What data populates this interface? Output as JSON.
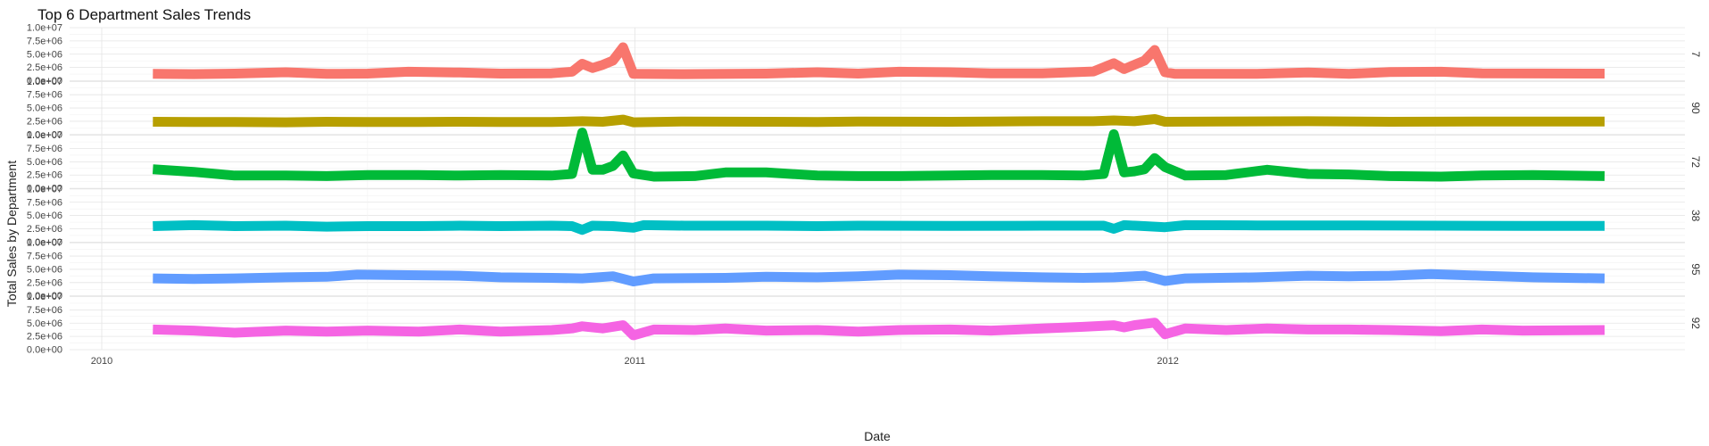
{
  "chart_data": {
    "type": "line",
    "title": "Top 6 Department Sales Trends",
    "xlabel": "Date",
    "ylabel": "Total Sales by Department",
    "facet": "rows",
    "grid": true,
    "legend": "none",
    "xlim": [
      "2009-12-10",
      "2012-12-20"
    ],
    "ylim": [
      0,
      10000000
    ],
    "x_ticks": [
      "2010",
      "2011",
      "2012"
    ],
    "y_ticks": [
      {
        "value": 0,
        "label": "0.0e+00"
      },
      {
        "value": 2500000,
        "label": "2.5e+06"
      },
      {
        "value": 5000000,
        "label": "5.0e+06"
      },
      {
        "value": 7500000,
        "label": "7.5e+06"
      },
      {
        "value": 10000000,
        "label": "1.0e+07"
      }
    ],
    "series": [
      {
        "name": "7",
        "color": "#F8766D",
        "points": [
          [
            "2010-02-05",
            1300000
          ],
          [
            "2010-03-05",
            1250000
          ],
          [
            "2010-04-02",
            1350000
          ],
          [
            "2010-05-07",
            1600000
          ],
          [
            "2010-06-04",
            1300000
          ],
          [
            "2010-07-02",
            1350000
          ],
          [
            "2010-07-30",
            1700000
          ],
          [
            "2010-09-03",
            1550000
          ],
          [
            "2010-10-01",
            1350000
          ],
          [
            "2010-11-05",
            1400000
          ],
          [
            "2010-11-19",
            1700000
          ],
          [
            "2010-11-26",
            3200000
          ],
          [
            "2010-12-03",
            2400000
          ],
          [
            "2010-12-10",
            3000000
          ],
          [
            "2010-12-17",
            3800000
          ],
          [
            "2010-12-24",
            6300000
          ],
          [
            "2010-12-31",
            1300000
          ],
          [
            "2011-02-04",
            1250000
          ],
          [
            "2011-04-01",
            1350000
          ],
          [
            "2011-05-06",
            1600000
          ],
          [
            "2011-06-03",
            1350000
          ],
          [
            "2011-07-01",
            1700000
          ],
          [
            "2011-08-05",
            1600000
          ],
          [
            "2011-09-02",
            1400000
          ],
          [
            "2011-10-07",
            1400000
          ],
          [
            "2011-11-11",
            1750000
          ],
          [
            "2011-11-25",
            3300000
          ],
          [
            "2011-12-02",
            2200000
          ],
          [
            "2011-12-09",
            3000000
          ],
          [
            "2011-12-16",
            3800000
          ],
          [
            "2011-12-23",
            5800000
          ],
          [
            "2011-12-30",
            1600000
          ],
          [
            "2012-01-06",
            1300000
          ],
          [
            "2012-03-02",
            1300000
          ],
          [
            "2012-04-06",
            1550000
          ],
          [
            "2012-05-04",
            1300000
          ],
          [
            "2012-06-01",
            1650000
          ],
          [
            "2012-07-06",
            1700000
          ],
          [
            "2012-08-03",
            1400000
          ],
          [
            "2012-10-26",
            1350000
          ]
        ]
      },
      {
        "name": "90",
        "color": "#B79F00",
        "points": [
          [
            "2010-02-05",
            2400000
          ],
          [
            "2010-03-05",
            2350000
          ],
          [
            "2010-04-02",
            2350000
          ],
          [
            "2010-05-07",
            2300000
          ],
          [
            "2010-06-04",
            2400000
          ],
          [
            "2010-07-02",
            2350000
          ],
          [
            "2010-08-06",
            2350000
          ],
          [
            "2010-09-03",
            2400000
          ],
          [
            "2010-10-01",
            2350000
          ],
          [
            "2010-11-05",
            2350000
          ],
          [
            "2010-11-26",
            2500000
          ],
          [
            "2010-12-10",
            2400000
          ],
          [
            "2010-12-24",
            2800000
          ],
          [
            "2010-12-31",
            2300000
          ],
          [
            "2011-02-04",
            2450000
          ],
          [
            "2011-04-01",
            2400000
          ],
          [
            "2011-05-06",
            2350000
          ],
          [
            "2011-06-03",
            2450000
          ],
          [
            "2011-08-05",
            2400000
          ],
          [
            "2011-09-02",
            2450000
          ],
          [
            "2011-10-07",
            2500000
          ],
          [
            "2011-11-11",
            2500000
          ],
          [
            "2011-11-25",
            2650000
          ],
          [
            "2011-12-09",
            2500000
          ],
          [
            "2011-12-23",
            2900000
          ],
          [
            "2011-12-30",
            2400000
          ],
          [
            "2012-02-03",
            2450000
          ],
          [
            "2012-04-06",
            2500000
          ],
          [
            "2012-06-01",
            2400000
          ],
          [
            "2012-08-03",
            2450000
          ],
          [
            "2012-10-26",
            2450000
          ]
        ]
      },
      {
        "name": "72",
        "color": "#00BA38",
        "points": [
          [
            "2010-02-05",
            3600000
          ],
          [
            "2010-03-05",
            3100000
          ],
          [
            "2010-04-02",
            2400000
          ],
          [
            "2010-05-07",
            2400000
          ],
          [
            "2010-06-04",
            2300000
          ],
          [
            "2010-07-02",
            2500000
          ],
          [
            "2010-08-06",
            2500000
          ],
          [
            "2010-09-03",
            2400000
          ],
          [
            "2010-10-01",
            2500000
          ],
          [
            "2010-11-05",
            2400000
          ],
          [
            "2010-11-19",
            2700000
          ],
          [
            "2010-11-26",
            10500000
          ],
          [
            "2010-12-03",
            3500000
          ],
          [
            "2010-12-10",
            3500000
          ],
          [
            "2010-12-17",
            4200000
          ],
          [
            "2010-12-24",
            6200000
          ],
          [
            "2010-12-31",
            2800000
          ],
          [
            "2011-01-14",
            2200000
          ],
          [
            "2011-02-11",
            2300000
          ],
          [
            "2011-03-04",
            3000000
          ],
          [
            "2011-04-01",
            3000000
          ],
          [
            "2011-05-06",
            2400000
          ],
          [
            "2011-06-03",
            2300000
          ],
          [
            "2011-07-01",
            2300000
          ],
          [
            "2011-08-05",
            2400000
          ],
          [
            "2011-09-02",
            2500000
          ],
          [
            "2011-10-07",
            2500000
          ],
          [
            "2011-11-04",
            2400000
          ],
          [
            "2011-11-18",
            2700000
          ],
          [
            "2011-11-25",
            10200000
          ],
          [
            "2011-12-02",
            3000000
          ],
          [
            "2011-12-09",
            3200000
          ],
          [
            "2011-12-16",
            3600000
          ],
          [
            "2011-12-23",
            5700000
          ],
          [
            "2011-12-30",
            4000000
          ],
          [
            "2012-01-13",
            2400000
          ],
          [
            "2012-02-10",
            2500000
          ],
          [
            "2012-03-09",
            3500000
          ],
          [
            "2012-04-06",
            2700000
          ],
          [
            "2012-05-04",
            2600000
          ],
          [
            "2012-06-01",
            2300000
          ],
          [
            "2012-07-06",
            2200000
          ],
          [
            "2012-08-03",
            2400000
          ],
          [
            "2012-09-07",
            2500000
          ],
          [
            "2012-10-26",
            2300000
          ]
        ]
      },
      {
        "name": "38",
        "color": "#00BFC4",
        "points": [
          [
            "2010-02-05",
            3000000
          ],
          [
            "2010-03-05",
            3200000
          ],
          [
            "2010-04-02",
            3000000
          ],
          [
            "2010-05-07",
            3100000
          ],
          [
            "2010-06-04",
            2900000
          ],
          [
            "2010-07-02",
            3000000
          ],
          [
            "2010-08-06",
            3000000
          ],
          [
            "2010-09-03",
            3100000
          ],
          [
            "2010-10-01",
            3000000
          ],
          [
            "2010-11-05",
            3100000
          ],
          [
            "2010-11-19",
            3000000
          ],
          [
            "2010-11-26",
            2300000
          ],
          [
            "2010-12-03",
            3100000
          ],
          [
            "2010-12-17",
            3000000
          ],
          [
            "2010-12-31",
            2700000
          ],
          [
            "2011-01-07",
            3200000
          ],
          [
            "2011-02-04",
            3100000
          ],
          [
            "2011-04-01",
            3100000
          ],
          [
            "2011-05-06",
            3000000
          ],
          [
            "2011-06-03",
            3100000
          ],
          [
            "2011-08-05",
            3050000
          ],
          [
            "2011-10-07",
            3100000
          ],
          [
            "2011-11-18",
            3100000
          ],
          [
            "2011-11-25",
            2500000
          ],
          [
            "2011-12-02",
            3200000
          ],
          [
            "2011-12-16",
            3000000
          ],
          [
            "2011-12-30",
            2800000
          ],
          [
            "2012-01-13",
            3200000
          ],
          [
            "2012-03-02",
            3150000
          ],
          [
            "2012-05-04",
            3150000
          ],
          [
            "2012-07-06",
            3100000
          ],
          [
            "2012-08-31",
            3050000
          ],
          [
            "2012-10-26",
            3050000
          ]
        ]
      },
      {
        "name": "95",
        "color": "#619CFF",
        "points": [
          [
            "2010-02-05",
            3300000
          ],
          [
            "2010-03-05",
            3200000
          ],
          [
            "2010-04-02",
            3300000
          ],
          [
            "2010-05-07",
            3500000
          ],
          [
            "2010-06-04",
            3600000
          ],
          [
            "2010-06-25",
            4000000
          ],
          [
            "2010-07-30",
            3900000
          ],
          [
            "2010-09-03",
            3800000
          ],
          [
            "2010-10-01",
            3500000
          ],
          [
            "2010-11-05",
            3400000
          ],
          [
            "2010-11-26",
            3300000
          ],
          [
            "2010-12-17",
            3700000
          ],
          [
            "2010-12-31",
            2700000
          ],
          [
            "2011-01-14",
            3300000
          ],
          [
            "2011-03-04",
            3400000
          ],
          [
            "2011-04-01",
            3600000
          ],
          [
            "2011-05-06",
            3500000
          ],
          [
            "2011-06-03",
            3700000
          ],
          [
            "2011-07-01",
            4000000
          ],
          [
            "2011-08-05",
            3900000
          ],
          [
            "2011-09-02",
            3700000
          ],
          [
            "2011-10-07",
            3500000
          ],
          [
            "2011-11-04",
            3400000
          ],
          [
            "2011-11-25",
            3500000
          ],
          [
            "2011-12-16",
            3800000
          ],
          [
            "2011-12-30",
            2800000
          ],
          [
            "2012-01-13",
            3300000
          ],
          [
            "2012-03-02",
            3500000
          ],
          [
            "2012-04-06",
            3800000
          ],
          [
            "2012-05-04",
            3700000
          ],
          [
            "2012-06-01",
            3800000
          ],
          [
            "2012-06-29",
            4100000
          ],
          [
            "2012-08-03",
            3800000
          ],
          [
            "2012-09-07",
            3500000
          ],
          [
            "2012-10-26",
            3300000
          ]
        ]
      },
      {
        "name": "92",
        "color": "#F564E3",
        "points": [
          [
            "2010-02-05",
            3800000
          ],
          [
            "2010-03-05",
            3600000
          ],
          [
            "2010-04-02",
            3200000
          ],
          [
            "2010-05-07",
            3600000
          ],
          [
            "2010-06-04",
            3400000
          ],
          [
            "2010-07-02",
            3600000
          ],
          [
            "2010-08-06",
            3400000
          ],
          [
            "2010-09-03",
            3800000
          ],
          [
            "2010-10-01",
            3400000
          ],
          [
            "2010-11-05",
            3700000
          ],
          [
            "2010-11-19",
            4000000
          ],
          [
            "2010-11-26",
            4400000
          ],
          [
            "2010-12-10",
            4000000
          ],
          [
            "2010-12-24",
            4600000
          ],
          [
            "2010-12-31",
            2700000
          ],
          [
            "2011-01-14",
            3800000
          ],
          [
            "2011-02-11",
            3700000
          ],
          [
            "2011-03-04",
            4000000
          ],
          [
            "2011-04-01",
            3600000
          ],
          [
            "2011-05-06",
            3700000
          ],
          [
            "2011-06-03",
            3400000
          ],
          [
            "2011-07-01",
            3700000
          ],
          [
            "2011-08-05",
            3800000
          ],
          [
            "2011-09-02",
            3600000
          ],
          [
            "2011-10-07",
            4000000
          ],
          [
            "2011-11-04",
            4300000
          ],
          [
            "2011-11-25",
            4600000
          ],
          [
            "2011-12-02",
            4200000
          ],
          [
            "2011-12-09",
            4600000
          ],
          [
            "2011-12-23",
            5100000
          ],
          [
            "2011-12-30",
            2900000
          ],
          [
            "2012-01-13",
            4000000
          ],
          [
            "2012-02-10",
            3700000
          ],
          [
            "2012-03-09",
            4000000
          ],
          [
            "2012-04-06",
            3800000
          ],
          [
            "2012-05-04",
            3800000
          ],
          [
            "2012-06-01",
            3700000
          ],
          [
            "2012-07-06",
            3500000
          ],
          [
            "2012-08-03",
            3800000
          ],
          [
            "2012-08-31",
            3600000
          ],
          [
            "2012-10-26",
            3700000
          ]
        ]
      }
    ]
  }
}
